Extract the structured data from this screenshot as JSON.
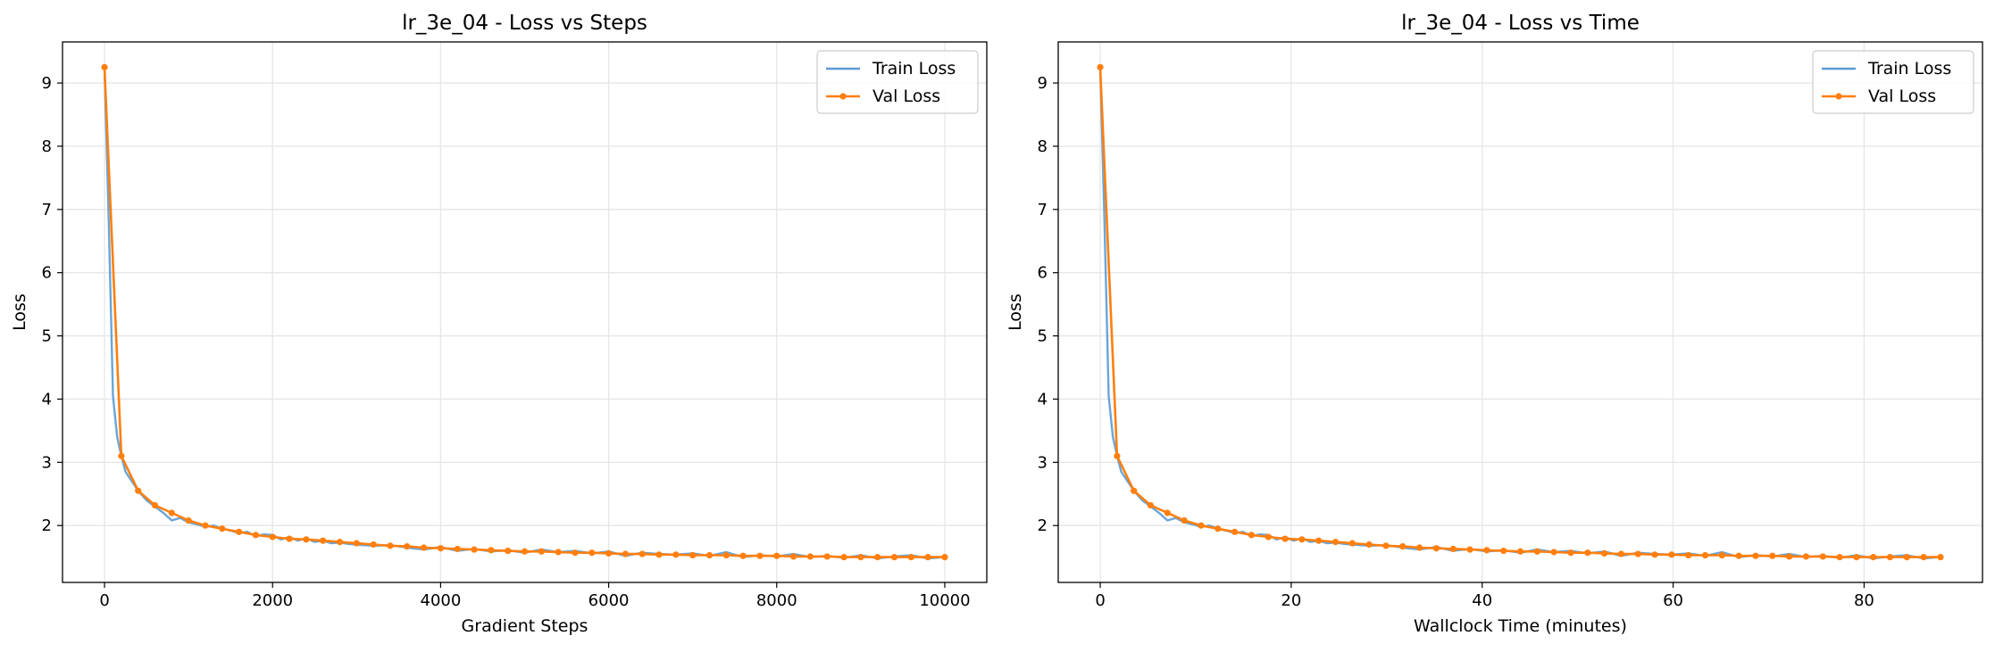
{
  "chart_data": [
    {
      "type": "line",
      "title": "lr_3e_04 - Loss vs Steps",
      "xlabel": "Gradient Steps",
      "ylabel": "Loss",
      "xlim": [
        -500,
        10500
      ],
      "ylim": [
        1.1,
        9.65
      ],
      "xticks": [
        0,
        2000,
        4000,
        6000,
        8000,
        10000
      ],
      "yticks": [
        2,
        3,
        4,
        5,
        6,
        7,
        8,
        9
      ],
      "grid": true,
      "legend": "top-right",
      "series": [
        {
          "name": "Train Loss",
          "color": "#5a9bd5",
          "x": [
            0,
            50,
            100,
            150,
            200,
            250,
            300,
            350,
            400,
            500,
            600,
            700,
            800,
            900,
            1000,
            1100,
            1200,
            1300,
            1400,
            1500,
            1600,
            1700,
            1800,
            1900,
            2000,
            2100,
            2200,
            2300,
            2400,
            2500,
            2600,
            2700,
            2800,
            2900,
            3000,
            3200,
            3400,
            3600,
            3800,
            4000,
            4200,
            4400,
            4600,
            4800,
            5000,
            5200,
            5400,
            5600,
            5800,
            6000,
            6200,
            6400,
            6600,
            6800,
            7000,
            7200,
            7400,
            7600,
            7800,
            8000,
            8200,
            8400,
            8600,
            8800,
            9000,
            9200,
            9400,
            9600,
            9800,
            10000
          ],
          "values": [
            9.25,
            6.8,
            4.05,
            3.4,
            3.1,
            2.85,
            2.75,
            2.65,
            2.55,
            2.4,
            2.3,
            2.2,
            2.08,
            2.12,
            2.05,
            2.02,
            1.98,
            2.0,
            1.95,
            1.92,
            1.88,
            1.9,
            1.83,
            1.86,
            1.85,
            1.78,
            1.82,
            1.76,
            1.8,
            1.74,
            1.76,
            1.72,
            1.73,
            1.71,
            1.7,
            1.68,
            1.69,
            1.65,
            1.62,
            1.66,
            1.6,
            1.63,
            1.59,
            1.61,
            1.57,
            1.62,
            1.58,
            1.6,
            1.56,
            1.59,
            1.52,
            1.57,
            1.55,
            1.54,
            1.56,
            1.52,
            1.58,
            1.5,
            1.53,
            1.51,
            1.55,
            1.5,
            1.52,
            1.49,
            1.53,
            1.48,
            1.51,
            1.53,
            1.48,
            1.5
          ]
        },
        {
          "name": "Val Loss",
          "color": "#ff7f0e",
          "x": [
            0,
            200,
            400,
            600,
            800,
            1000,
            1200,
            1400,
            1600,
            1800,
            2000,
            2200,
            2400,
            2600,
            2800,
            3000,
            3200,
            3400,
            3600,
            3800,
            4000,
            4200,
            4400,
            4600,
            4800,
            5000,
            5200,
            5400,
            5600,
            5800,
            6000,
            6200,
            6400,
            6600,
            6800,
            7000,
            7200,
            7400,
            7600,
            7800,
            8000,
            8200,
            8400,
            8600,
            8800,
            9000,
            9200,
            9400,
            9600,
            9800,
            10000
          ],
          "values": [
            9.25,
            3.1,
            2.55,
            2.32,
            2.2,
            2.08,
            2.0,
            1.95,
            1.9,
            1.85,
            1.82,
            1.79,
            1.78,
            1.76,
            1.74,
            1.72,
            1.7,
            1.68,
            1.67,
            1.65,
            1.64,
            1.63,
            1.62,
            1.61,
            1.6,
            1.59,
            1.59,
            1.58,
            1.57,
            1.57,
            1.56,
            1.55,
            1.55,
            1.54,
            1.54,
            1.53,
            1.53,
            1.53,
            1.52,
            1.52,
            1.52,
            1.51,
            1.51,
            1.51,
            1.5,
            1.5,
            1.5,
            1.5,
            1.5,
            1.5,
            1.5
          ]
        }
      ]
    },
    {
      "type": "line",
      "title": "lr_3e_04 - Loss vs Time",
      "xlabel": "Wallclock Time (minutes)",
      "ylabel": "Loss",
      "xlim": [
        -4.4,
        92.4
      ],
      "ylim": [
        1.1,
        9.65
      ],
      "xticks": [
        0,
        20,
        40,
        60,
        80
      ],
      "yticks": [
        2,
        3,
        4,
        5,
        6,
        7,
        8,
        9
      ],
      "grid": true,
      "legend": "top-right",
      "series": [
        {
          "name": "Train Loss",
          "color": "#5a9bd5",
          "x": [
            0,
            0.44,
            0.88,
            1.32,
            1.76,
            2.2,
            2.64,
            3.08,
            3.52,
            4.4,
            5.28,
            6.16,
            7.04,
            7.92,
            8.8,
            9.68,
            10.56,
            11.44,
            12.32,
            13.2,
            14.08,
            14.96,
            15.84,
            16.72,
            17.6,
            18.48,
            19.36,
            20.24,
            21.12,
            22.0,
            22.88,
            23.76,
            24.64,
            25.52,
            26.4,
            28.16,
            29.92,
            31.68,
            33.44,
            35.2,
            36.96,
            38.72,
            40.48,
            42.24,
            44.0,
            45.76,
            47.52,
            49.28,
            51.04,
            52.8,
            54.56,
            56.32,
            58.08,
            59.84,
            61.6,
            63.36,
            65.12,
            66.88,
            68.64,
            70.4,
            72.16,
            73.92,
            75.68,
            77.44,
            79.2,
            80.96,
            82.72,
            84.48,
            86.24,
            88.0
          ],
          "values": [
            9.25,
            6.8,
            4.05,
            3.4,
            3.1,
            2.85,
            2.75,
            2.65,
            2.55,
            2.4,
            2.3,
            2.2,
            2.08,
            2.12,
            2.05,
            2.02,
            1.98,
            2.0,
            1.95,
            1.92,
            1.88,
            1.9,
            1.83,
            1.86,
            1.85,
            1.78,
            1.82,
            1.76,
            1.8,
            1.74,
            1.76,
            1.72,
            1.73,
            1.71,
            1.7,
            1.68,
            1.69,
            1.65,
            1.62,
            1.66,
            1.6,
            1.63,
            1.59,
            1.61,
            1.57,
            1.62,
            1.58,
            1.6,
            1.56,
            1.59,
            1.52,
            1.57,
            1.55,
            1.54,
            1.56,
            1.52,
            1.58,
            1.5,
            1.53,
            1.51,
            1.55,
            1.5,
            1.52,
            1.49,
            1.53,
            1.48,
            1.51,
            1.53,
            1.48,
            1.5
          ]
        },
        {
          "name": "Val Loss",
          "color": "#ff7f0e",
          "x": [
            0,
            1.76,
            3.52,
            5.28,
            7.04,
            8.8,
            10.56,
            12.32,
            14.08,
            15.84,
            17.6,
            19.36,
            21.12,
            22.88,
            24.64,
            26.4,
            28.16,
            29.92,
            31.68,
            33.44,
            35.2,
            36.96,
            38.72,
            40.48,
            42.24,
            44.0,
            45.76,
            47.52,
            49.28,
            51.04,
            52.8,
            54.56,
            56.32,
            58.08,
            59.84,
            61.6,
            63.36,
            65.12,
            66.88,
            68.64,
            70.4,
            72.16,
            73.92,
            75.68,
            77.44,
            79.2,
            80.96,
            82.72,
            84.48,
            86.24,
            88.0
          ],
          "values": [
            9.25,
            3.1,
            2.55,
            2.32,
            2.2,
            2.08,
            2.0,
            1.95,
            1.9,
            1.85,
            1.82,
            1.79,
            1.78,
            1.76,
            1.74,
            1.72,
            1.7,
            1.68,
            1.67,
            1.65,
            1.64,
            1.63,
            1.62,
            1.61,
            1.6,
            1.59,
            1.59,
            1.58,
            1.57,
            1.57,
            1.56,
            1.55,
            1.55,
            1.54,
            1.54,
            1.53,
            1.53,
            1.53,
            1.52,
            1.52,
            1.52,
            1.51,
            1.51,
            1.51,
            1.5,
            1.5,
            1.5,
            1.5,
            1.5,
            1.5,
            1.5
          ]
        }
      ]
    }
  ]
}
